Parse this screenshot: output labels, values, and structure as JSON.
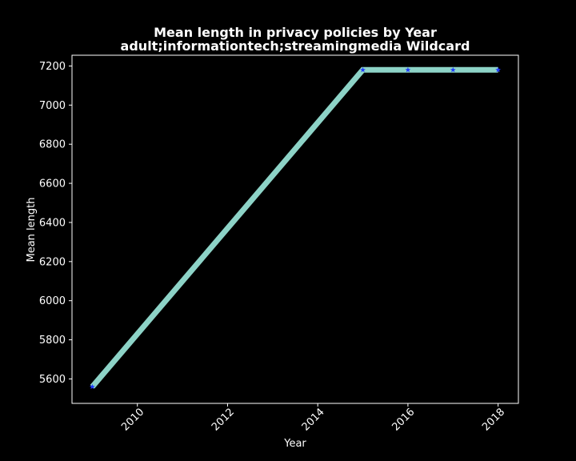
{
  "chart_data": {
    "type": "line",
    "title": "Mean length in privacy policies by Year",
    "subtitle": "adult;informationtech;streamingmedia Wildcard",
    "xlabel": "Year",
    "ylabel": "Mean length",
    "xlim": [
      2008.55,
      2018.45
    ],
    "ylim": [
      5475,
      7255
    ],
    "xticks": [
      "2010",
      "2012",
      "2014",
      "2016",
      "2018"
    ],
    "yticks": [
      "5600",
      "5800",
      "6000",
      "6200",
      "6400",
      "6600",
      "6800",
      "7000",
      "7200"
    ],
    "grid": false,
    "series": [
      {
        "x": [
          2009,
          2015,
          2016,
          2017,
          2018
        ],
        "values": [
          5560,
          7180,
          7180,
          7180,
          7180
        ]
      }
    ],
    "colors": {
      "background": "#000000",
      "axes": "#ffffff",
      "line": "#8dd3c7",
      "marker": "#1f3cff"
    }
  }
}
